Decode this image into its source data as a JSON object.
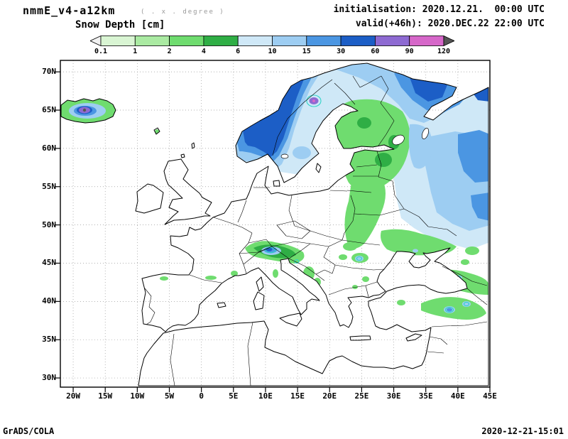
{
  "header": {
    "model_title": "nmmE_v4-a12km",
    "grid_note": "( . x . degree )",
    "init_line": "initialisation: 2020.12.21.  00:00 UTC",
    "field_title": "Snow Depth [cm]",
    "valid_line": "valid(+46h): 2020.DEC.22 22:00 UTC"
  },
  "footer": {
    "brand": "GrADS/COLA",
    "timestamp": "2020-12-21-15:01"
  },
  "chart_data": {
    "type": "heatmap",
    "title": "Snow Depth [cm]",
    "units": "cm",
    "projection": "latlon",
    "region": "Europe",
    "lon_range_deg": [
      -22,
      45
    ],
    "lat_range_deg": [
      28.8,
      71.5
    ],
    "grid": "dotted",
    "x_tick_labels": [
      "20W",
      "15W",
      "10W",
      "5W",
      "0",
      "5E",
      "10E",
      "15E",
      "20E",
      "25E",
      "30E",
      "35E",
      "40E",
      "45E"
    ],
    "x_tick_lons": [
      -20,
      -15,
      -10,
      -5,
      0,
      5,
      10,
      15,
      20,
      25,
      30,
      35,
      40,
      45
    ],
    "y_tick_labels": [
      "70N",
      "65N",
      "60N",
      "55N",
      "50N",
      "45N",
      "40N",
      "35N",
      "30N"
    ],
    "y_tick_lats": [
      70,
      65,
      60,
      55,
      50,
      45,
      40,
      35,
      30
    ],
    "colorbar": {
      "levels": [
        "0.1",
        "1",
        "2",
        "4",
        "6",
        "10",
        "15",
        "30",
        "60",
        "90",
        "120"
      ],
      "below_color": "#f2f2f2",
      "above_color": "#555555",
      "segment_colors": [
        "#d9f5d3",
        "#aaeaa2",
        "#6fdc6f",
        "#2fae45",
        "#cfe8f7",
        "#9dcdf2",
        "#4b96e2",
        "#1c5ec6",
        "#8e6ad2",
        "#d667c9"
      ]
    },
    "highlight_contour_color": "#2fd3c8",
    "snow_regions": [
      {
        "region": "Iceland interior",
        "snow_depth_cm": "60-120+"
      },
      {
        "region": "Norway mountains / Scandinavian spine",
        "snow_depth_cm": "30-60"
      },
      {
        "region": "Sweden-Norway border peak",
        "snow_depth_cm": "60-90"
      },
      {
        "region": "Northern Sweden and Lapland",
        "snow_depth_cm": "10-30"
      },
      {
        "region": "Finland",
        "snow_depth_cm": "2-6"
      },
      {
        "region": "Kola Peninsula / NW Russia",
        "snow_depth_cm": "10-30"
      },
      {
        "region": "Arctic Russia (top right)",
        "snow_depth_cm": "15-60"
      },
      {
        "region": "Central European Russia",
        "snow_depth_cm": "6-15"
      },
      {
        "region": "Baltics / Belarus / NW Ukraine band",
        "snow_depth_cm": "1-4"
      },
      {
        "region": "Southern Russia / Ukraine east band",
        "snow_depth_cm": "1-4"
      },
      {
        "region": "Alps",
        "snow_depth_cm": "2-30"
      },
      {
        "region": "Carpathians",
        "snow_depth_cm": "1-15"
      },
      {
        "region": "Caucasus",
        "snow_depth_cm": "1-10"
      },
      {
        "region": "Eastern Turkey highlands",
        "snow_depth_cm": "1-15"
      },
      {
        "region": "Pyrenees / Cantabrians / Massif Central",
        "snow_depth_cm": "0.1-2"
      },
      {
        "region": "Dinaric Alps / Balkan mountains",
        "snow_depth_cm": "0.1-2"
      },
      {
        "region": "UK, France, Iberia lowlands, Italy, Mediterranean coasts",
        "snow_depth_cm": "0"
      }
    ]
  }
}
